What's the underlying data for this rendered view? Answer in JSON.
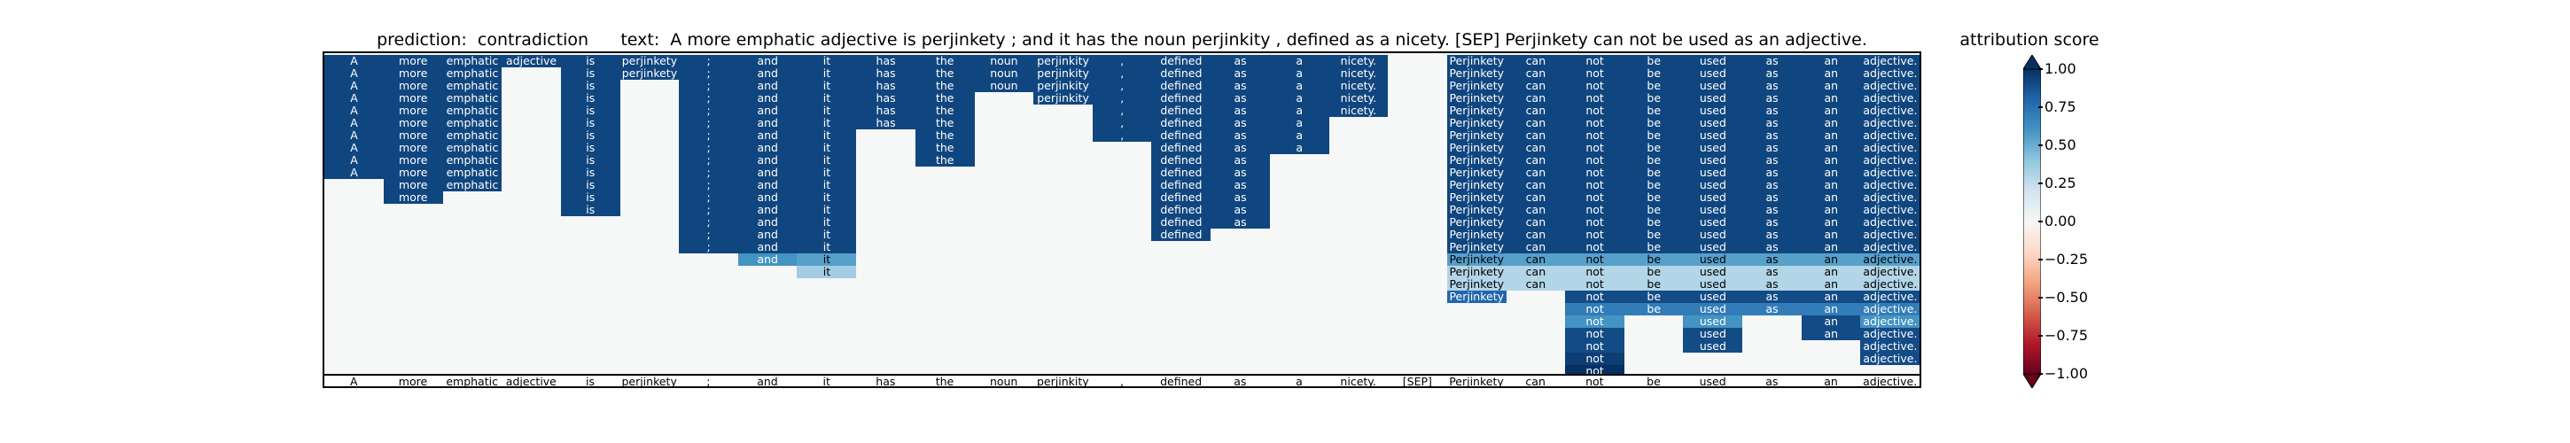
{
  "chart_data": {
    "type": "heatmap",
    "title": "prediction:  contradiction      text:  A more emphatic adjective is perjinkety ; and it has the noun perjinkity , defined as a nicety. [SEP] Perjinkety can not be used as an adjective.",
    "tokens": [
      "A",
      "more",
      "emphatic",
      "adjective",
      "is",
      "perjinkety",
      ";",
      "and",
      "it",
      "has",
      "the",
      "noun",
      "perjinkity",
      ",",
      "defined",
      "as",
      "a",
      "nicety.",
      "[SEP]",
      "Perjinkety",
      "can",
      "not",
      "be",
      "used",
      "as",
      "an",
      "adjective."
    ],
    "rows": [
      [
        0.92,
        0.92,
        0.92,
        0.92,
        0.92,
        0.92,
        0.92,
        0.92,
        0.92,
        0.92,
        0.92,
        0.92,
        0.92,
        0.92,
        0.92,
        0.92,
        0.92,
        0.92,
        null,
        0.92,
        0.92,
        0.92,
        0.92,
        0.92,
        0.92,
        0.92,
        0.92
      ],
      [
        0.92,
        0.92,
        0.92,
        null,
        0.92,
        0.92,
        0.92,
        0.92,
        0.92,
        0.92,
        0.92,
        0.92,
        0.92,
        0.92,
        0.92,
        0.92,
        0.92,
        0.92,
        null,
        0.92,
        0.92,
        0.92,
        0.92,
        0.92,
        0.92,
        0.92,
        0.92
      ],
      [
        0.92,
        0.92,
        0.92,
        null,
        0.92,
        null,
        0.92,
        0.92,
        0.92,
        0.92,
        0.92,
        0.92,
        0.92,
        0.92,
        0.92,
        0.92,
        0.92,
        0.92,
        null,
        0.92,
        0.92,
        0.92,
        0.92,
        0.92,
        0.92,
        0.92,
        0.92
      ],
      [
        0.92,
        0.92,
        0.92,
        null,
        0.92,
        null,
        0.92,
        0.92,
        0.92,
        0.92,
        0.92,
        null,
        0.92,
        0.92,
        0.92,
        0.92,
        0.92,
        0.92,
        null,
        0.92,
        0.92,
        0.92,
        0.92,
        0.92,
        0.92,
        0.92,
        0.92
      ],
      [
        0.92,
        0.92,
        0.92,
        null,
        0.92,
        null,
        0.92,
        0.92,
        0.92,
        0.92,
        0.92,
        null,
        null,
        0.92,
        0.92,
        0.92,
        0.92,
        0.92,
        null,
        0.92,
        0.92,
        0.92,
        0.92,
        0.92,
        0.92,
        0.92,
        0.92
      ],
      [
        0.92,
        0.92,
        0.92,
        null,
        0.92,
        null,
        0.92,
        0.92,
        0.92,
        0.92,
        0.92,
        null,
        null,
        0.92,
        0.92,
        0.92,
        0.92,
        null,
        null,
        0.92,
        0.92,
        0.92,
        0.92,
        0.92,
        0.92,
        0.92,
        0.92
      ],
      [
        0.92,
        0.92,
        0.92,
        null,
        0.92,
        null,
        0.92,
        0.92,
        0.92,
        null,
        0.92,
        null,
        null,
        0.92,
        0.92,
        0.92,
        0.92,
        null,
        null,
        0.92,
        0.92,
        0.92,
        0.92,
        0.92,
        0.92,
        0.92,
        0.92
      ],
      [
        0.92,
        0.92,
        0.92,
        null,
        0.92,
        null,
        0.92,
        0.92,
        0.92,
        null,
        0.92,
        null,
        null,
        null,
        0.92,
        0.92,
        0.92,
        null,
        null,
        0.92,
        0.92,
        0.92,
        0.92,
        0.92,
        0.92,
        0.92,
        0.92
      ],
      [
        0.92,
        0.92,
        0.92,
        null,
        0.92,
        null,
        0.92,
        0.92,
        0.92,
        null,
        0.92,
        null,
        null,
        null,
        0.92,
        0.92,
        null,
        null,
        null,
        0.92,
        0.92,
        0.92,
        0.92,
        0.92,
        0.92,
        0.92,
        0.92
      ],
      [
        0.92,
        0.92,
        0.92,
        null,
        0.92,
        null,
        0.92,
        0.92,
        0.92,
        null,
        null,
        null,
        null,
        null,
        0.92,
        0.92,
        null,
        null,
        null,
        0.92,
        0.92,
        0.92,
        0.92,
        0.92,
        0.92,
        0.92,
        0.92
      ],
      [
        null,
        0.92,
        0.92,
        null,
        0.92,
        null,
        0.92,
        0.92,
        0.92,
        null,
        null,
        null,
        null,
        null,
        0.92,
        0.92,
        null,
        null,
        null,
        0.92,
        0.92,
        0.92,
        0.92,
        0.92,
        0.92,
        0.92,
        0.92
      ],
      [
        null,
        0.92,
        null,
        null,
        0.92,
        null,
        0.92,
        0.92,
        0.92,
        null,
        null,
        null,
        null,
        null,
        0.92,
        0.92,
        null,
        null,
        null,
        0.92,
        0.92,
        0.92,
        0.92,
        0.92,
        0.92,
        0.92,
        0.92
      ],
      [
        null,
        null,
        null,
        null,
        0.92,
        null,
        0.92,
        0.92,
        0.92,
        null,
        null,
        null,
        null,
        null,
        0.92,
        0.92,
        null,
        null,
        null,
        0.92,
        0.92,
        0.92,
        0.92,
        0.92,
        0.92,
        0.92,
        0.92
      ],
      [
        null,
        null,
        null,
        null,
        null,
        null,
        0.92,
        0.92,
        0.92,
        null,
        null,
        null,
        null,
        null,
        0.92,
        0.92,
        null,
        null,
        null,
        0.92,
        0.92,
        0.92,
        0.92,
        0.92,
        0.92,
        0.92,
        0.92
      ],
      [
        null,
        null,
        null,
        null,
        null,
        null,
        0.92,
        0.92,
        0.92,
        null,
        null,
        null,
        null,
        null,
        0.92,
        null,
        null,
        null,
        null,
        0.92,
        0.92,
        0.92,
        0.92,
        0.92,
        0.92,
        0.92,
        0.92
      ],
      [
        null,
        null,
        null,
        null,
        null,
        null,
        0.92,
        0.92,
        0.92,
        null,
        null,
        null,
        null,
        null,
        null,
        null,
        null,
        null,
        null,
        0.92,
        0.92,
        0.92,
        0.92,
        0.92,
        0.92,
        0.92,
        0.92
      ],
      [
        null,
        null,
        null,
        null,
        null,
        null,
        null,
        0.6,
        0.55,
        null,
        null,
        null,
        null,
        null,
        null,
        null,
        null,
        null,
        null,
        0.55,
        0.55,
        0.55,
        0.55,
        0.55,
        0.55,
        0.55,
        0.55
      ],
      [
        null,
        null,
        null,
        null,
        null,
        null,
        null,
        null,
        0.35,
        null,
        null,
        null,
        null,
        null,
        null,
        null,
        null,
        null,
        null,
        0.3,
        0.3,
        0.3,
        0.3,
        0.3,
        0.3,
        0.3,
        0.3
      ],
      [
        null,
        null,
        null,
        null,
        null,
        null,
        null,
        null,
        null,
        null,
        null,
        null,
        null,
        null,
        null,
        null,
        null,
        null,
        null,
        0.3,
        0.3,
        0.3,
        0.3,
        0.3,
        0.3,
        0.3,
        0.3
      ],
      [
        null,
        null,
        null,
        null,
        null,
        null,
        null,
        null,
        null,
        null,
        null,
        null,
        null,
        null,
        null,
        null,
        null,
        null,
        null,
        0.8,
        null,
        0.9,
        0.9,
        0.9,
        0.9,
        0.9,
        0.9
      ],
      [
        null,
        null,
        null,
        null,
        null,
        null,
        null,
        null,
        null,
        null,
        null,
        null,
        null,
        null,
        null,
        null,
        null,
        null,
        null,
        null,
        null,
        0.7,
        0.7,
        0.7,
        0.7,
        0.7,
        0.7
      ],
      [
        null,
        null,
        null,
        null,
        null,
        null,
        null,
        null,
        null,
        null,
        null,
        null,
        null,
        null,
        null,
        null,
        null,
        null,
        null,
        null,
        null,
        0.6,
        null,
        0.6,
        null,
        0.9,
        0.6
      ],
      [
        null,
        null,
        null,
        null,
        null,
        null,
        null,
        null,
        null,
        null,
        null,
        null,
        null,
        null,
        null,
        null,
        null,
        null,
        null,
        null,
        null,
        0.9,
        null,
        0.9,
        null,
        0.9,
        0.9
      ],
      [
        null,
        null,
        null,
        null,
        null,
        null,
        null,
        null,
        null,
        null,
        null,
        null,
        null,
        null,
        null,
        null,
        null,
        null,
        null,
        null,
        null,
        0.9,
        null,
        0.9,
        null,
        null,
        0.9
      ],
      [
        null,
        null,
        null,
        null,
        null,
        null,
        null,
        null,
        null,
        null,
        null,
        null,
        null,
        null,
        null,
        null,
        null,
        null,
        null,
        null,
        null,
        0.95,
        null,
        null,
        null,
        null,
        0.9
      ],
      [
        null,
        null,
        null,
        null,
        null,
        null,
        null,
        null,
        null,
        null,
        null,
        null,
        null,
        null,
        null,
        null,
        null,
        null,
        null,
        null,
        null,
        1.0,
        null,
        null,
        null,
        null,
        null
      ]
    ],
    "colorbar": {
      "label": "attribution score",
      "ticks": [
        "1.00",
        "0.75",
        "0.50",
        "0.25",
        "0.00",
        "−0.25",
        "−0.50",
        "−0.75",
        "−1.00"
      ],
      "range": [
        -1,
        1
      ],
      "colors": [
        "#67001f",
        "#b2182b",
        "#d6604d",
        "#f4a582",
        "#fddbc7",
        "#f7f7f7",
        "#d1e5f0",
        "#92c5de",
        "#4393c3",
        "#2166ac",
        "#053061"
      ]
    }
  }
}
